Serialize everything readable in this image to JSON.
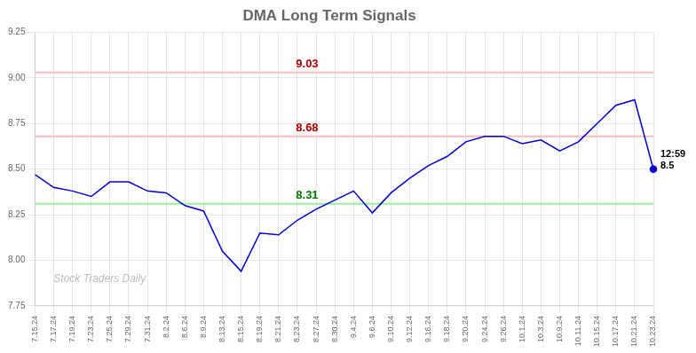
{
  "chart_data": {
    "type": "line",
    "title": "DMA Long Term Signals",
    "categories": [
      "7.15.24",
      "7.17.24",
      "7.19.24",
      "7.23.24",
      "7.25.24",
      "7.29.24",
      "7.31.24",
      "8.2.24",
      "8.6.24",
      "8.9.24",
      "8.13.24",
      "8.15.24",
      "8.19.24",
      "8.21.24",
      "8.23.24",
      "8.27.24",
      "8.30.24",
      "9.4.24",
      "9.6.24",
      "9.10.24",
      "9.12.24",
      "9.16.24",
      "9.18.24",
      "9.20.24",
      "9.24.24",
      "9.26.24",
      "10.1.24",
      "10.3.24",
      "10.9.24",
      "10.11.24",
      "10.15.24",
      "10.17.24",
      "10.21.24",
      "10.23.24"
    ],
    "values": [
      8.47,
      8.4,
      8.38,
      8.35,
      8.43,
      8.43,
      8.38,
      8.37,
      8.3,
      8.27,
      8.05,
      7.94,
      8.15,
      8.14,
      8.22,
      8.28,
      8.33,
      8.38,
      8.26,
      8.37,
      8.45,
      8.52,
      8.57,
      8.65,
      8.68,
      8.68,
      8.64,
      8.66,
      8.6,
      8.65,
      8.75,
      8.85,
      8.88,
      8.5
    ],
    "color": "#0000cc",
    "ylim": [
      7.75,
      9.25
    ],
    "yticks": [
      7.75,
      {
        "value": 8.0,
        "label": "8.00"
      },
      8.25,
      {
        "value": 8.5,
        "label": "8.50"
      },
      8.75,
      {
        "value": 9.0,
        "label": "9.00"
      },
      9.25
    ],
    "grid": true,
    "annotations": [
      {
        "type": "hline",
        "y": 9.03,
        "text": "9.03",
        "color": "#ffbbbb",
        "text_color": "#aa0000"
      },
      {
        "type": "hline",
        "y": 8.68,
        "text": "8.68",
        "color": "#ffbbbb",
        "text_color": "#aa0000"
      },
      {
        "type": "hline",
        "y": 8.31,
        "text": "8.31",
        "color": "#99ee99",
        "text_color": "#007700"
      },
      {
        "type": "point_label",
        "x": "10.23.24",
        "y": 8.5,
        "text": [
          "12:59",
          "8.5"
        ]
      },
      {
        "type": "watermark",
        "text": "Stock Traders Daily",
        "color": "#bbbbbb"
      }
    ]
  }
}
